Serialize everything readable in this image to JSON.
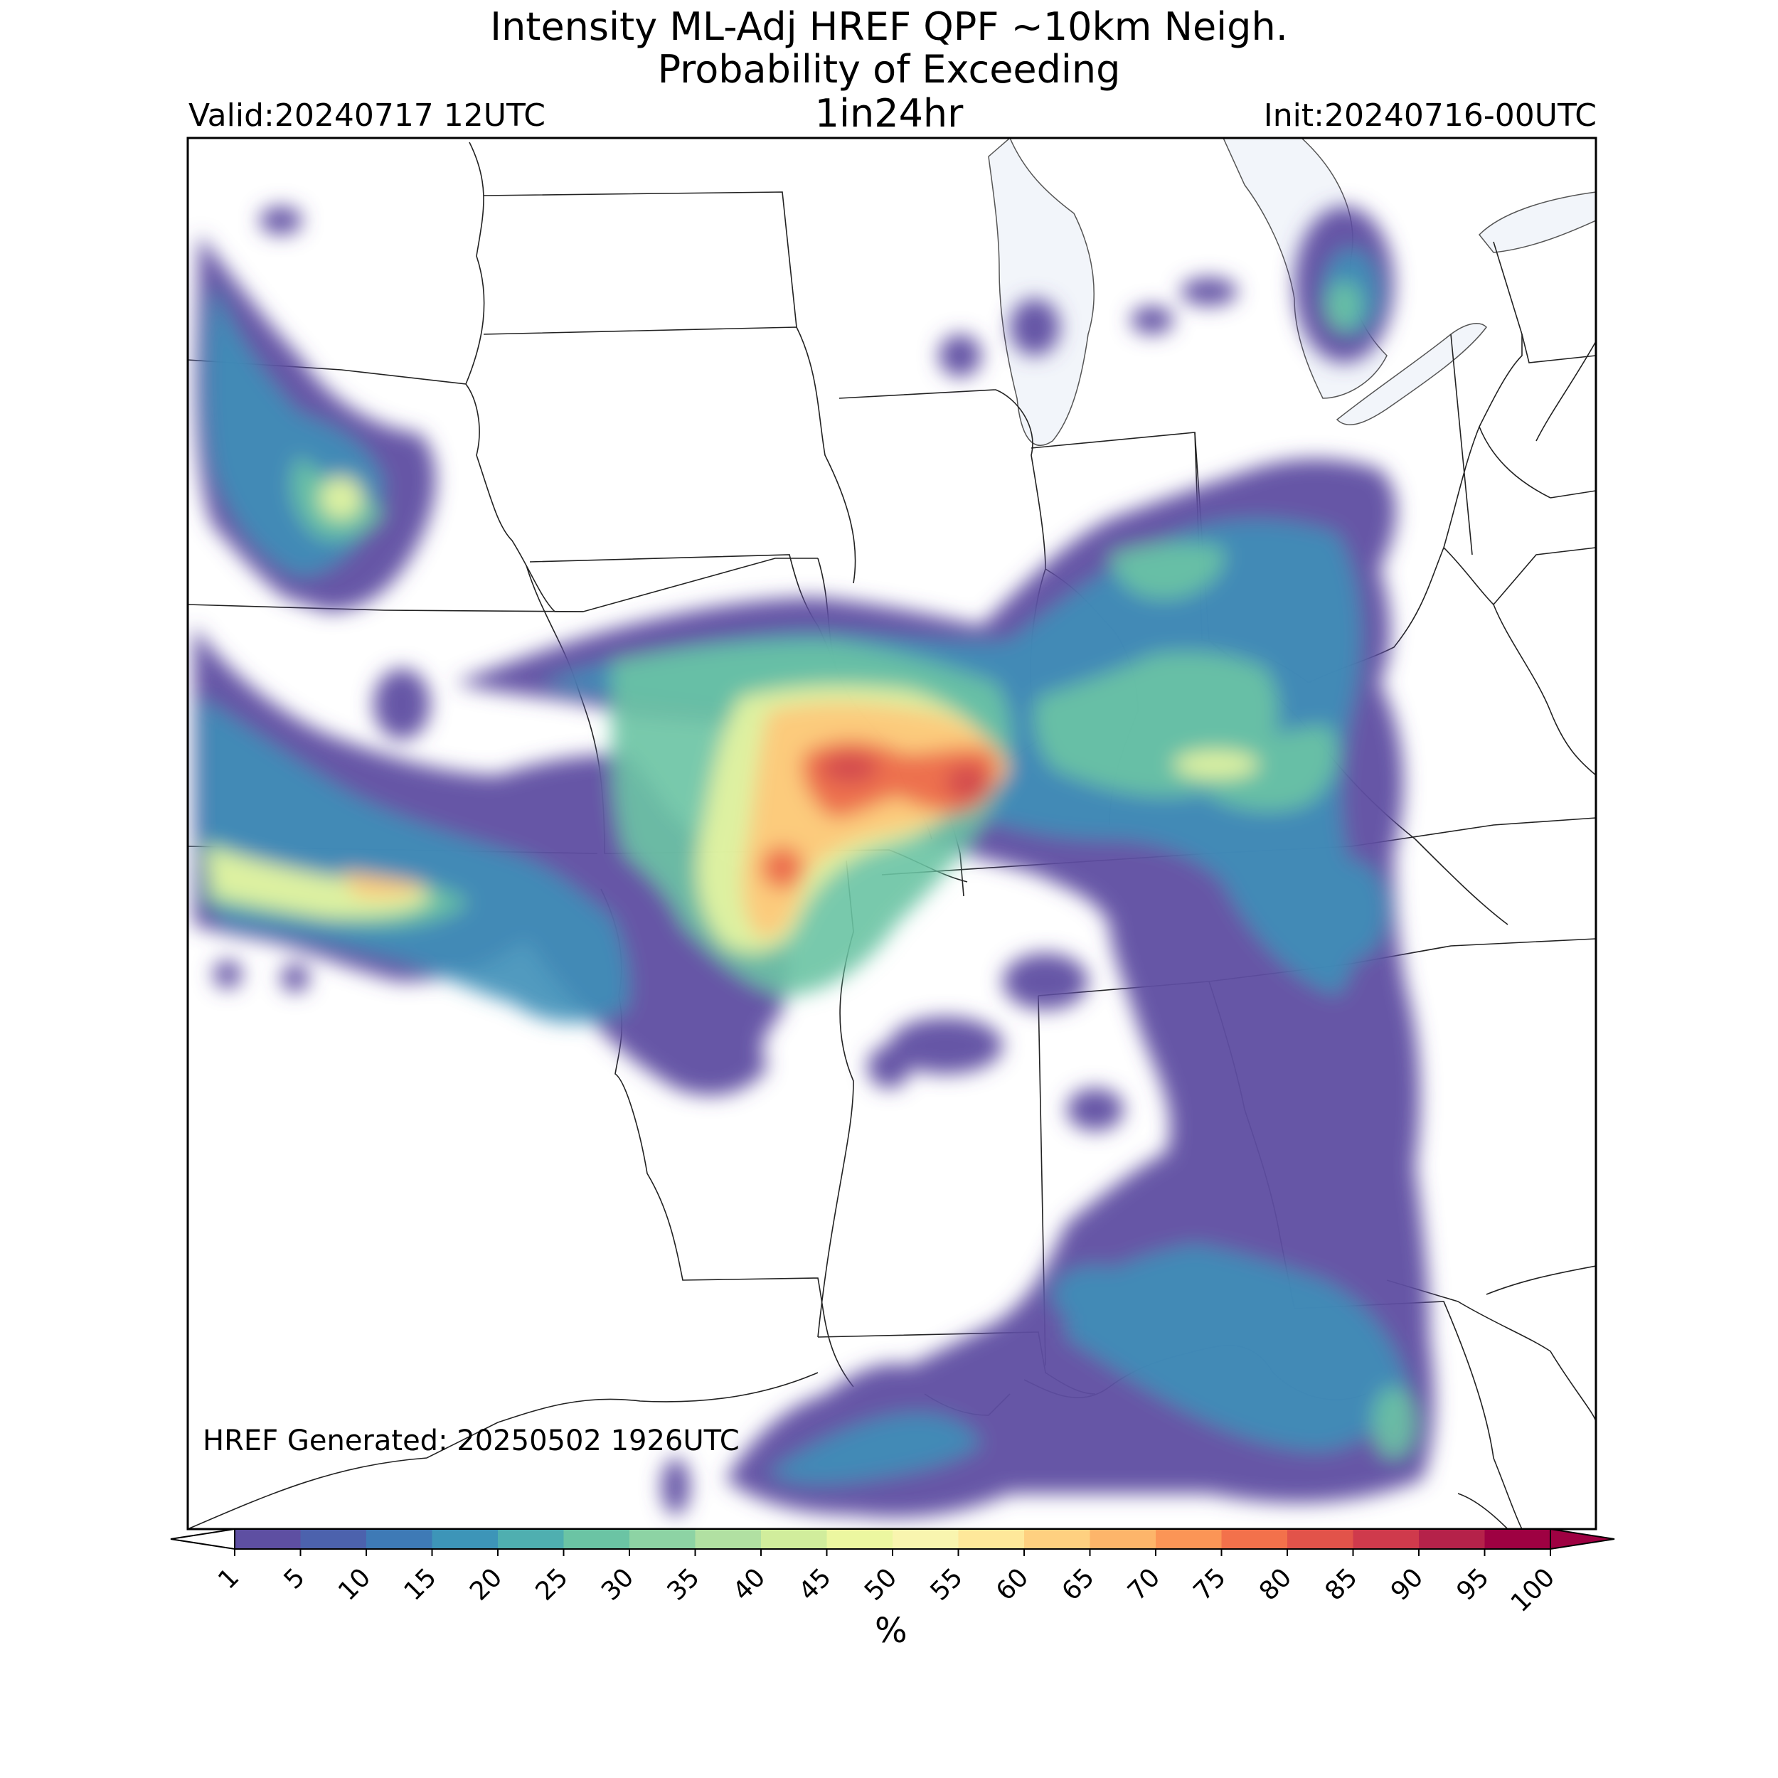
{
  "title": {
    "line1": "Intensity ML-Adj HREF QPF ~10km Neigh.",
    "line2": "Probability of Exceeding",
    "line3": "1in24hr"
  },
  "valid_label": "Valid:20240717 12UTC",
  "init_label": "Init:20240716-00UTC",
  "generated_label": "HREF Generated: 20250502 1926UTC",
  "colorbar": {
    "unit_label": "%",
    "ticks": [
      "1",
      "5",
      "10",
      "15",
      "20",
      "25",
      "30",
      "35",
      "40",
      "45",
      "50",
      "55",
      "60",
      "65",
      "70",
      "75",
      "80",
      "85",
      "90",
      "95",
      "100"
    ],
    "colors": [
      "#5e4fa2",
      "#4c62ad",
      "#3e7ab6",
      "#3d95b8",
      "#4fafb0",
      "#6bc4a4",
      "#8dd3a4",
      "#b1e0a2",
      "#d1ed9c",
      "#ecf7a0",
      "#f9f5af",
      "#fee89a",
      "#fed080",
      "#fdb56a",
      "#fb9556",
      "#f3714b",
      "#e2534a",
      "#cf3a4c",
      "#b5224a",
      "#9e0142"
    ],
    "under_color": "#ffffff",
    "over_color": "#9e0142"
  },
  "map": {
    "water_color": "#f2f5fa",
    "background": "#ffffff"
  }
}
